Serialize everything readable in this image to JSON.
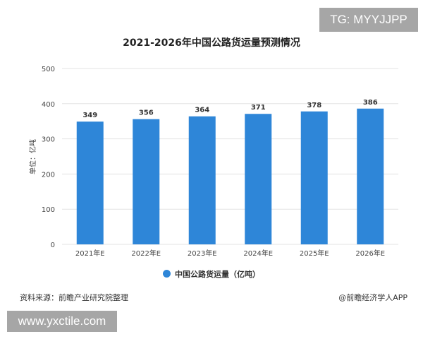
{
  "chart_data": {
    "type": "bar",
    "title": "2021-2026年中国公路货运量预测情况",
    "ylabel": "单位：亿吨",
    "categories": [
      "2021年E",
      "2022年E",
      "2023年E",
      "2024年E",
      "2025年E",
      "2026年E"
    ],
    "series": [
      {
        "name": "中国公路货运量（亿吨）",
        "values": [
          349,
          356,
          364,
          371,
          378,
          386
        ]
      }
    ],
    "ylim": [
      0,
      500
    ],
    "yticks": [
      0,
      100,
      200,
      300,
      400,
      500
    ],
    "grid": true,
    "legend": "bottom",
    "color": "#2e86d8"
  },
  "footer": {
    "source": "资料来源：前瞻产业研究院整理",
    "brand": "@前瞻经济学人APP"
  },
  "overlays": {
    "tg": "TG: MYYJJPP",
    "site": "www.yxctile.com"
  }
}
